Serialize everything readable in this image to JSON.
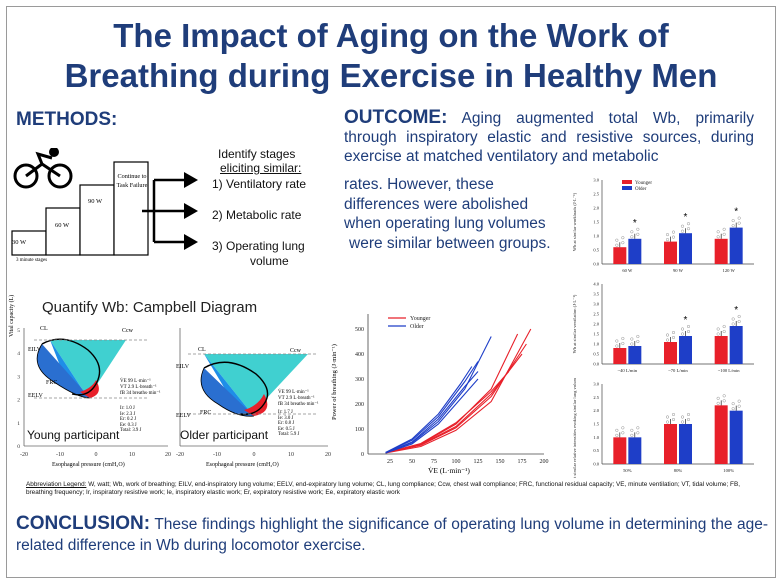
{
  "title_line1": "The Impact of Aging on the Work of",
  "title_line2": "Breathing during Exercise in Healthy Men",
  "methods": {
    "heading": "METHODS:",
    "stages": {
      "s30": "30 W",
      "s60": "60 W",
      "s90": "90 W",
      "continue": "Continue to Task Failure",
      "note": "3 minute stages"
    },
    "identify_line1": "Identify stages",
    "identify_line2": "eliciting similar:",
    "items": [
      "1) Ventilatory rate",
      "2) Metabolic rate",
      "3) Operating lung",
      "volume"
    ],
    "campbell_title": "Quantify Wb: Campbell Diagram",
    "young_label": "Young participant",
    "older_label": "Older participant",
    "young_stats": [
      "V̇E 99 L·min⁻¹",
      "VT 2.9 L·breath⁻¹",
      "fB 34 breaths·min⁻¹"
    ],
    "older_stats": [
      "V̇E 99 L·min⁻¹",
      "VT 2.9 L·breath⁻¹",
      "fB 34 breaths·min⁻¹"
    ],
    "young_work": [
      "Ir: 1.0 J",
      "Ie: 2.3 J",
      "Er: 0.2 J",
      "Ee: 0.3 J",
      "Total: 3.9 J"
    ],
    "older_work": [
      "Ir: 1.7 J",
      "Ie: 3.0 J",
      "Er: 0.8 J",
      "Ee: 0.5 J",
      "Total: 5.9 J"
    ],
    "cv_ylabel": "Vital capacity (L)",
    "cv_xlabel": "Esophageal pressure (cmH₂O)",
    "cv_xticks": [
      "-20",
      "-10",
      "0",
      "10",
      "20"
    ],
    "cv_yticks": [
      "5",
      "4",
      "3",
      "2",
      "1",
      "0"
    ],
    "labels": {
      "cl": "CL",
      "ccw": "Ccw",
      "eilv": "EILV",
      "eelv": "EELV",
      "frc": "FRC"
    }
  },
  "outcome": {
    "heading": "OUTCOME:",
    "text_full": "Aging augmented total Wb, primarily through inspiratory elastic and resistive sources, during exercise at matched ventilatory and metabolic",
    "text_tail": [
      "rates. However, these",
      "differences were abolished",
      "when operating lung volumes",
      "were similar between groups."
    ]
  },
  "colors": {
    "young": "#e8202a",
    "older": "#1e3ec8",
    "heading": "#1f3d7a",
    "cyan_fill": "#1ec8c8"
  },
  "chart_data": [
    {
      "type": "line",
      "ylabel": "Power of breathing (J·min⁻¹)",
      "xlabel": "V̇E (L·min⁻¹)",
      "xticks": [
        25,
        50,
        75,
        100,
        125,
        150,
        175,
        200
      ],
      "yticks": [
        0,
        100,
        200,
        300,
        400,
        500
      ],
      "xlim": [
        0,
        200
      ],
      "ylim": [
        0,
        560
      ],
      "legend": [
        "Younger",
        "Older"
      ],
      "series": [
        {
          "name": "Younger",
          "x": [
            20,
            60,
            100,
            140,
            170
          ],
          "y": [
            5,
            40,
            120,
            260,
            480
          ]
        },
        {
          "name": "Younger",
          "x": [
            20,
            60,
            100,
            140,
            180
          ],
          "y": [
            5,
            35,
            105,
            230,
            440
          ]
        },
        {
          "name": "Younger",
          "x": [
            20,
            60,
            100,
            140,
            185
          ],
          "y": [
            4,
            30,
            95,
            210,
            500
          ]
        },
        {
          "name": "Younger",
          "x": [
            20,
            60,
            100,
            140,
            175
          ],
          "y": [
            6,
            38,
            110,
            240,
            400
          ]
        },
        {
          "name": "Younger",
          "x": [
            20,
            60,
            100,
            140,
            160
          ],
          "y": [
            5,
            42,
            125,
            250,
            330
          ]
        },
        {
          "name": "Older",
          "x": [
            20,
            50,
            80,
            110,
            140
          ],
          "y": [
            5,
            45,
            130,
            260,
            470
          ]
        },
        {
          "name": "Older",
          "x": [
            20,
            50,
            80,
            110,
            125
          ],
          "y": [
            6,
            55,
            150,
            290,
            370
          ]
        },
        {
          "name": "Older",
          "x": [
            20,
            50,
            80,
            110,
            125
          ],
          "y": [
            5,
            48,
            140,
            270,
            330
          ]
        },
        {
          "name": "Older",
          "x": [
            20,
            50,
            80,
            110,
            125
          ],
          "y": [
            4,
            40,
            120,
            240,
            300
          ]
        },
        {
          "name": "Older",
          "x": [
            20,
            50,
            80,
            105,
            118
          ],
          "y": [
            6,
            60,
            160,
            280,
            350
          ]
        }
      ]
    },
    {
      "type": "bar",
      "ylabel": "Wb at similar workloads (J·L⁻¹)",
      "categories": [
        "60 W",
        "90 W",
        "120 W"
      ],
      "ylim": [
        0,
        3.0
      ],
      "yticks": [
        "0.0",
        "0.5",
        "1.0",
        "1.5",
        "2.0",
        "2.5",
        "3.0"
      ],
      "legend": [
        "Younger",
        "Older"
      ],
      "series": [
        {
          "name": "Younger",
          "values": [
            0.6,
            0.8,
            0.9
          ]
        },
        {
          "name": "Older",
          "values": [
            0.9,
            1.1,
            1.3
          ]
        }
      ],
      "significant": [
        "*",
        "*",
        "*"
      ]
    },
    {
      "type": "bar",
      "ylabel": "Wb at similar ventilation (J·L⁻¹)",
      "categories": [
        "~40 L/min",
        "~70 L/min",
        "~100 L/min"
      ],
      "ylim": [
        0,
        4.0
      ],
      "yticks": [
        "0.0",
        "0.5",
        "1.0",
        "1.5",
        "2.0",
        "2.5",
        "3.0",
        "3.5",
        "4.0"
      ],
      "series": [
        {
          "name": "Younger",
          "values": [
            0.8,
            1.1,
            1.4
          ]
        },
        {
          "name": "Older",
          "values": [
            0.9,
            1.4,
            1.9
          ]
        }
      ],
      "significant": [
        "",
        "*",
        "*"
      ]
    },
    {
      "type": "bar",
      "ylabel": "Wb at similar relative intensities evoking similar lung volumes (J·L⁻¹)",
      "categories": [
        "50%",
        "80%",
        "100%"
      ],
      "ylim": [
        0,
        3.0
      ],
      "yticks": [
        "0.0",
        "0.5",
        "1.0",
        "1.5",
        "2.0",
        "2.5",
        "3.0"
      ],
      "series": [
        {
          "name": "Younger",
          "values": [
            1.0,
            1.5,
            2.2
          ]
        },
        {
          "name": "Older",
          "values": [
            1.0,
            1.5,
            2.0
          ]
        }
      ],
      "significant": [
        "",
        "",
        ""
      ]
    }
  ],
  "legend_text": {
    "label": "Abbreviation Legend:",
    "line1": "W, watt; Wb, work of breathing; EILV, end-inspiratory lung volume; EELV, end-expiratory lung volume; CL, lung compliance; Ccw, chest wall compliance; FRC, functional residual capacity; VE, minute ventilation; VT, tidal volume; FB,",
    "line2": "breathing frequency; Ir, inspiratory resistive work; Ie, inspiratory elastic work; Er, expiratory resistive work; Ee, expiratory elastic work"
  },
  "conclusion": {
    "heading": "CONCLUSION:",
    "text": "These findings highlight the significance of operating lung volume in determining the age-related difference in Wb during locomotor exercise."
  }
}
